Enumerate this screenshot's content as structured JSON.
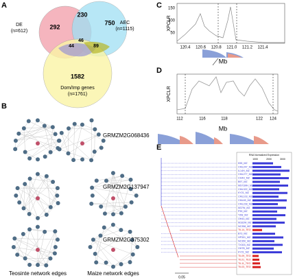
{
  "panels": {
    "a": "A",
    "b": "B",
    "c": "C",
    "d": "D",
    "e": "E"
  },
  "venn": {
    "de": {
      "label": "DE",
      "n": "(n=612)",
      "only": "292"
    },
    "aec": {
      "label": "AEC",
      "n": "(n=1115)",
      "only": "750"
    },
    "dom": {
      "label": "Dom/Imp genes",
      "n": "(n=1761)",
      "only": "1582"
    },
    "de_aec": "230",
    "all": "46",
    "de_dom": "44",
    "aec_dom": "89"
  },
  "networks": {
    "genes": [
      "GRMZM2G068436",
      "GRMZM2G137947",
      "GRMZM2G375302"
    ],
    "left_label": "Teosinte network edges",
    "right_label": "Maize network edges"
  },
  "plot_c": {
    "ylabel": "XPCLR",
    "yticks": [
      "50",
      "100",
      "150"
    ],
    "xticks": [
      "120.4",
      "120.6",
      "120.8",
      "121.0",
      "121.2",
      "121.4"
    ],
    "xlabel": "Mb"
  },
  "plot_d": {
    "ylabel": "XPCLR",
    "xticks": [
      "112",
      "116",
      "118",
      "122",
      "124"
    ],
    "xlabel": "Mb"
  },
  "tree": {
    "scale": "0.05",
    "expr_title": "RNA Normalized Expression",
    "expr_ticks": [
      "1000",
      "2000",
      "3000"
    ],
    "maize_color": "#3a3ad8",
    "teo_color": "#d82020",
    "leaves": [
      [
        "K55_MZ",
        "m"
      ],
      [
        "CML247_MZ",
        "m"
      ],
      [
        "IL14H_MZ",
        "m"
      ],
      [
        "CML277_MZ",
        "m"
      ],
      [
        "CH4H_MZ",
        "m"
      ],
      [
        "B97_MZ",
        "m"
      ],
      [
        "MS71MH_MZ",
        "m"
      ],
      [
        "CML322_MZ",
        "m"
      ],
      [
        "KY21_MZ",
        "m"
      ],
      [
        "CML103_MZ",
        "m"
      ],
      [
        "CML69_MZ",
        "m"
      ],
      [
        "CML228_MZ",
        "m"
      ],
      [
        "M37W_MZ",
        "m"
      ],
      [
        "P39_MZ",
        "m"
      ],
      [
        "TZI8_MZ",
        "m"
      ],
      [
        "OH43_MZ",
        "m"
      ],
      [
        "M162W_MZ",
        "m"
      ],
      [
        "NC358_MZ",
        "m"
      ],
      [
        "TIL14_TEO",
        "t"
      ],
      [
        "B73_MZ",
        "m"
      ],
      [
        "HP301_MZ",
        "m"
      ],
      [
        "NC350_MZ",
        "m"
      ],
      [
        "TX303_MZ",
        "m"
      ],
      [
        "OH7B_MZ",
        "m"
      ],
      [
        "KY21_MZ",
        "m"
      ],
      [
        "TIL09_TEO",
        "t"
      ],
      [
        "TIL01_TEO",
        "t"
      ],
      [
        "TIL11_TEO",
        "t"
      ],
      [
        "TIL03_TEO",
        "t"
      ]
    ]
  }
}
